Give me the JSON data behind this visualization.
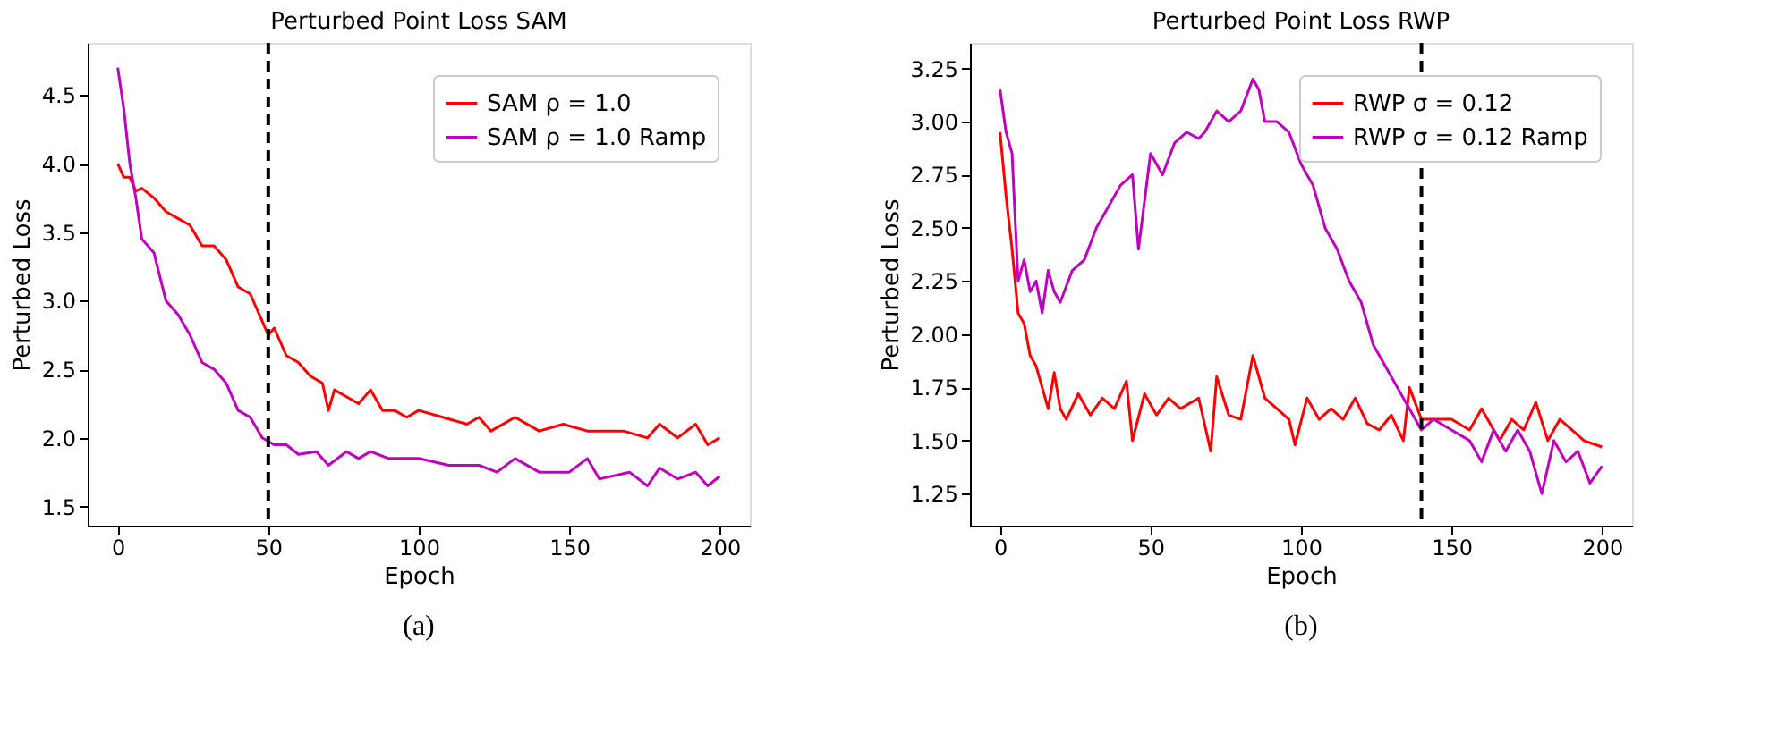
{
  "chart_data": [
    {
      "type": "line",
      "title": "Perturbed Point Loss SAM",
      "xlabel": "Epoch",
      "ylabel": "Perturbed Loss",
      "annotations": [
        "(a)"
      ],
      "legend": "top right",
      "grid": false,
      "marker": "none",
      "line_style": "solid",
      "xlim": [
        -10,
        210
      ],
      "xticks": [
        0,
        50,
        100,
        150,
        200
      ],
      "ylim": [
        1.36,
        4.88
      ],
      "yticks": [
        1.5,
        {
          "value": 2,
          "label": "2.0"
        },
        2.5,
        {
          "value": 3,
          "label": "3.0"
        },
        3.5,
        {
          "value": 4,
          "label": "4.0"
        },
        4.5
      ],
      "ref_lines": [
        {
          "axis": "x",
          "value": 50,
          "color": "#000000",
          "line_style": "dashed"
        }
      ],
      "series": [
        {
          "name": "SAM ρ = 1.0",
          "color": "#ff0000",
          "x": [
            0,
            2,
            4,
            6,
            8,
            12,
            16,
            20,
            24,
            28,
            32,
            36,
            40,
            44,
            48,
            50,
            52,
            56,
            60,
            64,
            68,
            70,
            72,
            76,
            80,
            84,
            88,
            92,
            96,
            100,
            108,
            116,
            120,
            124,
            132,
            140,
            148,
            156,
            160,
            168,
            176,
            180,
            186,
            192,
            196,
            200
          ],
          "values": [
            4.0,
            3.9,
            3.9,
            3.8,
            3.82,
            3.75,
            3.65,
            3.6,
            3.55,
            3.4,
            3.4,
            3.3,
            3.1,
            3.05,
            2.85,
            2.75,
            2.8,
            2.6,
            2.55,
            2.45,
            2.4,
            2.2,
            2.35,
            2.3,
            2.25,
            2.35,
            2.2,
            2.2,
            2.15,
            2.2,
            2.15,
            2.1,
            2.15,
            2.05,
            2.15,
            2.05,
            2.1,
            2.05,
            2.05,
            2.05,
            2.0,
            2.1,
            2.0,
            2.1,
            1.95,
            2.0
          ]
        },
        {
          "name": "SAM ρ = 1.0 Ramp",
          "color": "#bf00bf",
          "x": [
            0,
            2,
            4,
            6,
            8,
            12,
            16,
            20,
            24,
            28,
            32,
            36,
            40,
            44,
            48,
            52,
            56,
            60,
            66,
            70,
            76,
            80,
            84,
            90,
            100,
            110,
            120,
            126,
            132,
            140,
            150,
            156,
            160,
            170,
            176,
            180,
            186,
            192,
            196,
            200
          ],
          "values": [
            4.7,
            4.4,
            4.0,
            3.75,
            3.45,
            3.35,
            3.0,
            2.9,
            2.75,
            2.55,
            2.5,
            2.4,
            2.2,
            2.15,
            2.0,
            1.95,
            1.95,
            1.88,
            1.9,
            1.8,
            1.9,
            1.85,
            1.9,
            1.85,
            1.85,
            1.8,
            1.8,
            1.75,
            1.85,
            1.75,
            1.75,
            1.85,
            1.7,
            1.75,
            1.65,
            1.78,
            1.7,
            1.75,
            1.65,
            1.72
          ]
        }
      ]
    },
    {
      "type": "line",
      "title": "Perturbed Point Loss RWP",
      "xlabel": "Epoch",
      "ylabel": "Perturbed Loss",
      "annotations": [
        "(b)"
      ],
      "legend": "top right",
      "grid": false,
      "marker": "none",
      "line_style": "solid",
      "xlim": [
        -10,
        210
      ],
      "xticks": [
        0,
        50,
        100,
        150,
        200
      ],
      "ylim": [
        1.1,
        3.37
      ],
      "yticks": [
        1.25,
        {
          "value": 1.5,
          "label": "1.50"
        },
        1.75,
        {
          "value": 2,
          "label": "2.00"
        },
        2.25,
        {
          "value": 2.5,
          "label": "2.50"
        },
        2.75,
        {
          "value": 3,
          "label": "3.00"
        },
        3.25
      ],
      "ref_lines": [
        {
          "axis": "x",
          "value": 140,
          "color": "#000000",
          "line_style": "dashed"
        }
      ],
      "series": [
        {
          "name": "RWP σ = 0.12",
          "color": "#ff0000",
          "x": [
            0,
            2,
            4,
            6,
            8,
            10,
            12,
            14,
            16,
            18,
            20,
            22,
            26,
            30,
            34,
            38,
            42,
            44,
            48,
            52,
            56,
            60,
            66,
            70,
            72,
            76,
            80,
            84,
            88,
            92,
            96,
            98,
            102,
            106,
            110,
            114,
            118,
            122,
            126,
            130,
            134,
            136,
            140,
            144,
            150,
            156,
            160,
            166,
            170,
            174,
            178,
            182,
            186,
            190,
            194,
            200
          ],
          "values": [
            2.95,
            2.65,
            2.4,
            2.1,
            2.05,
            1.9,
            1.85,
            1.75,
            1.65,
            1.82,
            1.65,
            1.6,
            1.72,
            1.62,
            1.7,
            1.65,
            1.78,
            1.5,
            1.72,
            1.62,
            1.7,
            1.65,
            1.7,
            1.45,
            1.8,
            1.62,
            1.6,
            1.9,
            1.7,
            1.65,
            1.6,
            1.48,
            1.7,
            1.6,
            1.65,
            1.6,
            1.7,
            1.58,
            1.55,
            1.62,
            1.5,
            1.75,
            1.6,
            1.6,
            1.6,
            1.55,
            1.65,
            1.5,
            1.6,
            1.55,
            1.68,
            1.5,
            1.6,
            1.55,
            1.5,
            1.47
          ]
        },
        {
          "name": "RWP σ = 0.12 Ramp",
          "color": "#bf00bf",
          "x": [
            0,
            2,
            4,
            6,
            8,
            10,
            12,
            14,
            16,
            18,
            20,
            24,
            28,
            32,
            36,
            40,
            44,
            46,
            50,
            54,
            58,
            62,
            66,
            68,
            72,
            76,
            80,
            84,
            86,
            88,
            92,
            96,
            100,
            104,
            108,
            112,
            116,
            120,
            124,
            128,
            132,
            136,
            140,
            144,
            150,
            156,
            160,
            164,
            168,
            172,
            176,
            180,
            184,
            188,
            192,
            196,
            200
          ],
          "values": [
            3.15,
            2.95,
            2.85,
            2.25,
            2.35,
            2.2,
            2.25,
            2.1,
            2.3,
            2.2,
            2.15,
            2.3,
            2.35,
            2.5,
            2.6,
            2.7,
            2.75,
            2.4,
            2.85,
            2.75,
            2.9,
            2.95,
            2.92,
            2.95,
            3.05,
            3.0,
            3.05,
            3.2,
            3.15,
            3.0,
            3.0,
            2.95,
            2.8,
            2.7,
            2.5,
            2.4,
            2.25,
            2.15,
            1.95,
            1.85,
            1.75,
            1.65,
            1.55,
            1.6,
            1.55,
            1.5,
            1.4,
            1.55,
            1.45,
            1.55,
            1.45,
            1.25,
            1.5,
            1.4,
            1.45,
            1.3,
            1.38
          ]
        }
      ]
    }
  ]
}
